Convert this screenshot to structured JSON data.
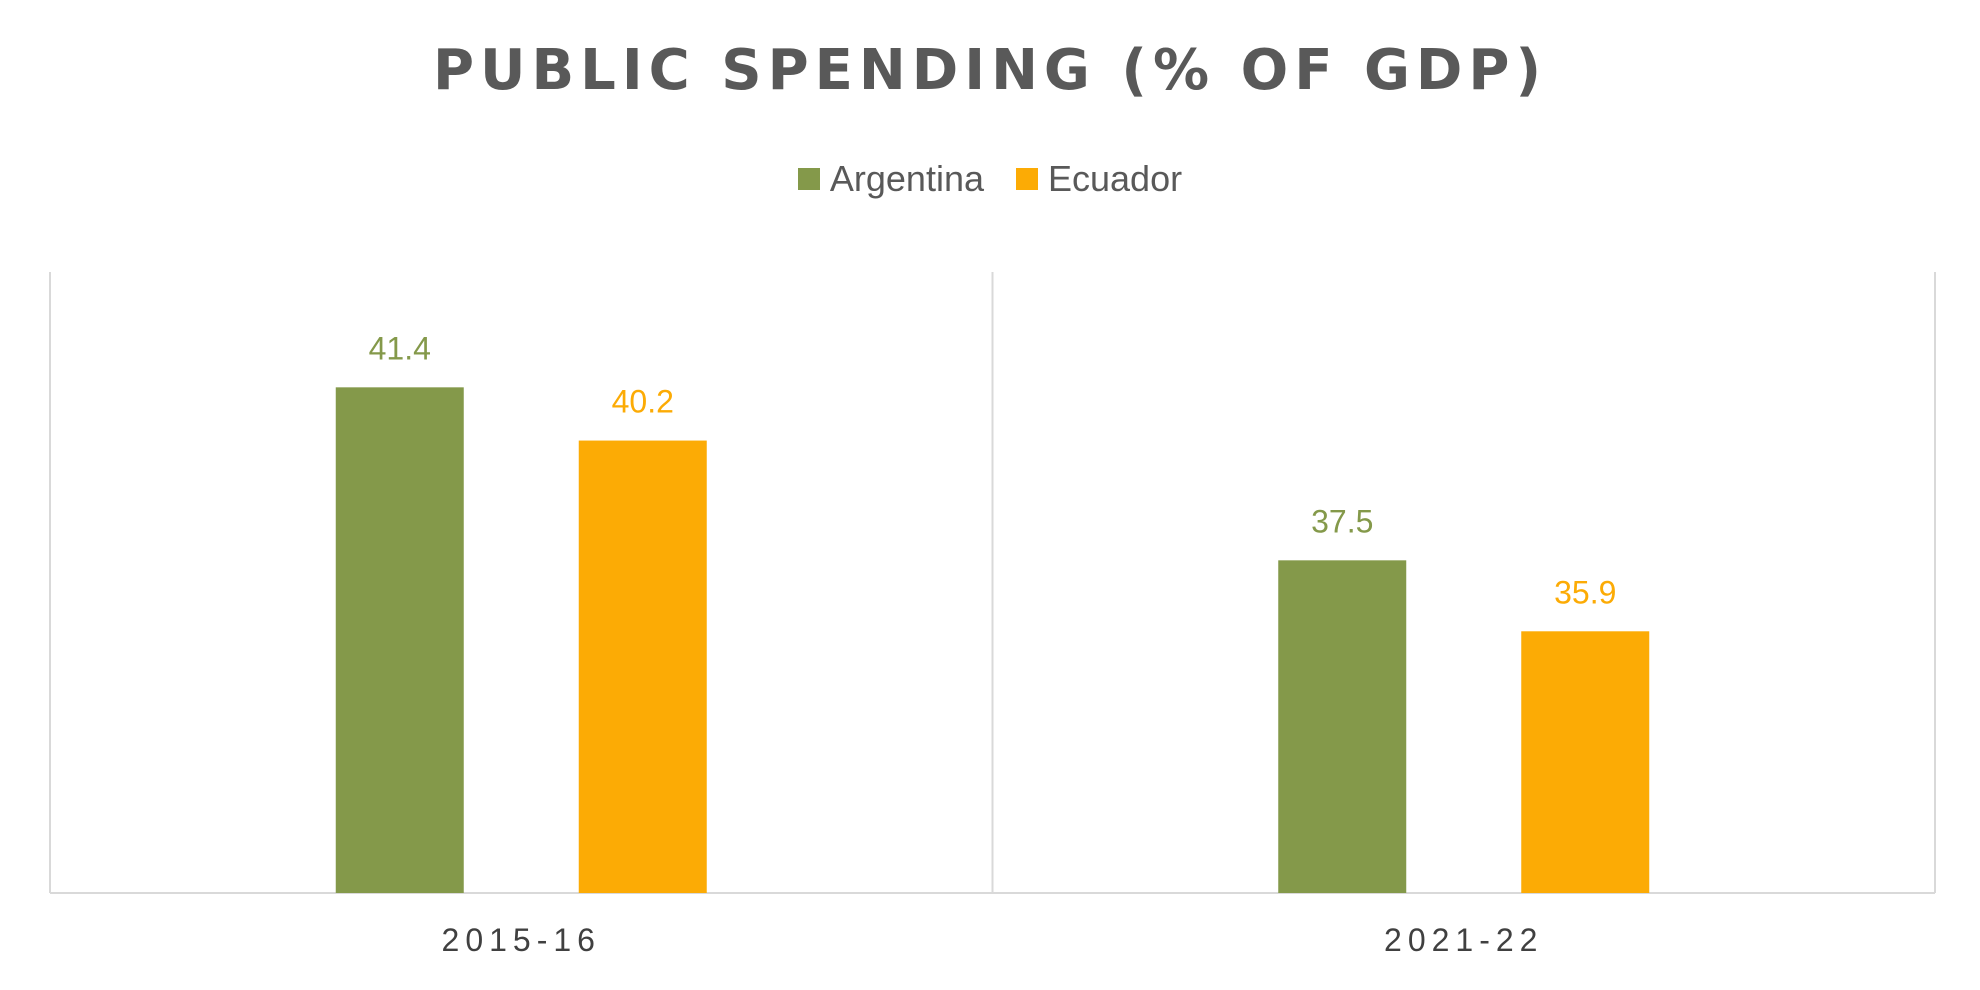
{
  "chart_data": {
    "type": "bar",
    "title": "PUBLIC SPENDING (% OF GDP)",
    "categories": [
      "2015-16",
      "2021-22"
    ],
    "series": [
      {
        "name": "Argentina",
        "color": "#84994A",
        "values": [
          41.4,
          37.5
        ]
      },
      {
        "name": "Ecuador",
        "color": "#FCAB05",
        "values": [
          40.2,
          35.9
        ]
      }
    ],
    "xlabel": "",
    "ylabel": "",
    "ylim": [
      30,
      44
    ],
    "grid": false,
    "legend_position": "top"
  }
}
